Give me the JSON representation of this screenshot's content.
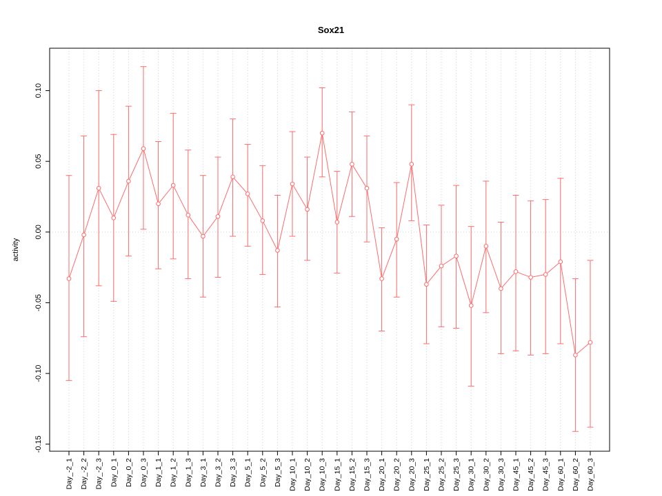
{
  "title": "Sox21",
  "chart_data": {
    "type": "line",
    "title": "Sox21",
    "xlabel": "",
    "ylabel": "activity",
    "ylim": [
      -0.155,
      0.13
    ],
    "yticks": [
      0.1,
      0.05,
      0.0,
      -0.05,
      -0.1,
      -0.15
    ],
    "grid": "vertical dotted gridlines at each category plus dotted horizontal line at 0",
    "legend": "none",
    "marker": "open-circle",
    "series_color": "#ff6a6a",
    "grid_color": "#cfcfcf",
    "axis_color": "#000000",
    "categories": [
      "Day_-2_1",
      "Day_-2_2",
      "Day_-2_3",
      "Day_0_1",
      "Day_0_2",
      "Day_0_3",
      "Day_1_1",
      "Day_1_2",
      "Day_1_3",
      "Day_3_1",
      "Day_3_2",
      "Day_3_3",
      "Day_5_1",
      "Day_5_2",
      "Day_5_3",
      "Day_10_1",
      "Day_10_2",
      "Day_10_3",
      "Day_15_1",
      "Day_15_2",
      "Day_15_3",
      "Day_20_1",
      "Day_20_2",
      "Day_20_3",
      "Day_25_1",
      "Day_25_2",
      "Day_25_3",
      "Day_30_1",
      "Day_30_2",
      "Day_30_3",
      "Day_45_1",
      "Day_45_2",
      "Day_45_3",
      "Day_60_1",
      "Day_60_2",
      "Day_60_3"
    ],
    "values": [
      -0.033,
      -0.002,
      0.031,
      0.01,
      0.036,
      0.059,
      0.02,
      0.033,
      0.012,
      -0.003,
      0.011,
      0.039,
      0.027,
      0.008,
      -0.013,
      0.034,
      0.016,
      0.07,
      0.007,
      0.048,
      0.031,
      -0.033,
      -0.005,
      0.048,
      -0.037,
      -0.024,
      -0.017,
      -0.052,
      -0.01,
      -0.04,
      -0.028,
      -0.032,
      -0.03,
      -0.021,
      -0.087,
      -0.078
    ],
    "err_high": [
      0.04,
      0.068,
      0.1,
      0.069,
      0.089,
      0.117,
      0.064,
      0.084,
      0.058,
      0.04,
      0.053,
      0.08,
      0.062,
      0.047,
      0.026,
      0.071,
      0.053,
      0.102,
      0.043,
      0.085,
      0.068,
      0.003,
      0.035,
      0.09,
      0.005,
      0.019,
      0.033,
      0.004,
      0.036,
      0.007,
      0.026,
      0.022,
      0.023,
      0.038,
      -0.033,
      -0.02
    ],
    "err_low": [
      -0.105,
      -0.074,
      -0.038,
      -0.049,
      -0.017,
      0.002,
      -0.026,
      -0.019,
      -0.033,
      -0.046,
      -0.032,
      -0.003,
      -0.01,
      -0.03,
      -0.053,
      -0.003,
      -0.02,
      0.039,
      -0.029,
      0.011,
      -0.007,
      -0.07,
      -0.046,
      0.008,
      -0.079,
      -0.067,
      -0.068,
      -0.109,
      -0.057,
      -0.086,
      -0.084,
      -0.087,
      -0.086,
      -0.079,
      -0.141,
      -0.138
    ]
  }
}
